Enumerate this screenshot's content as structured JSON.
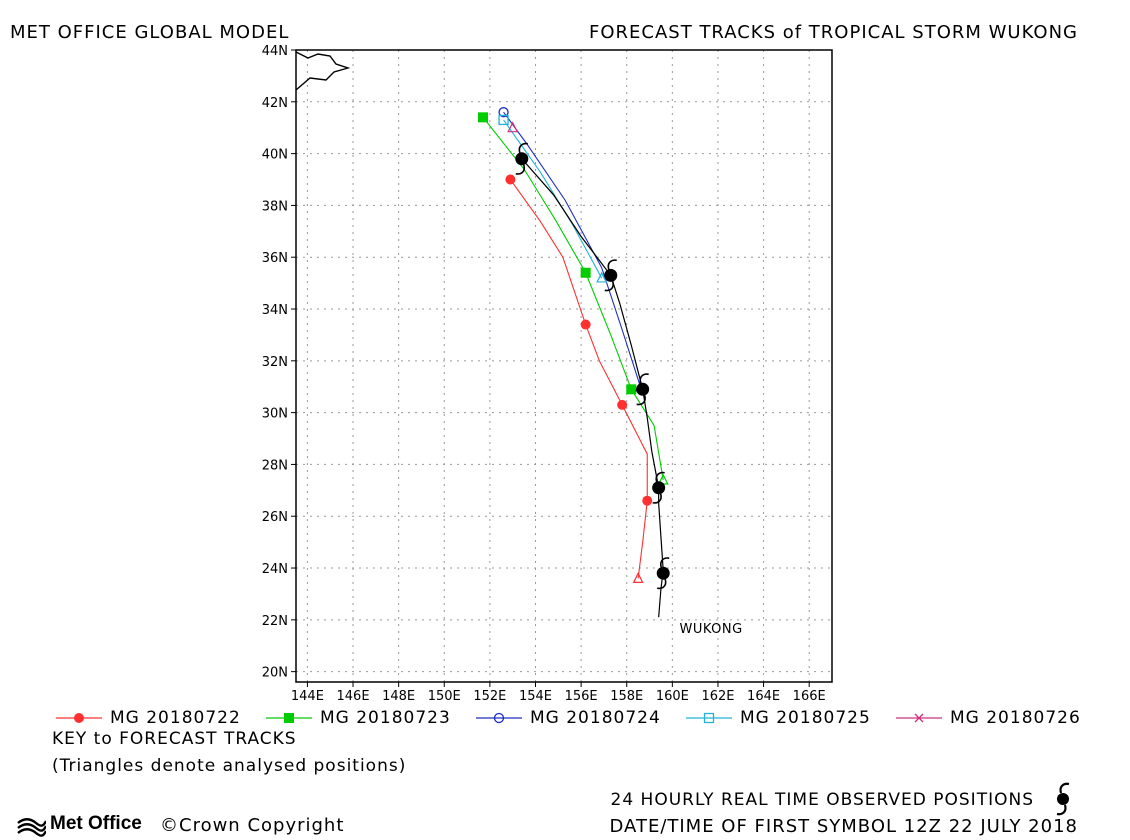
{
  "header": {
    "left": "MET OFFICE GLOBAL MODEL",
    "right": "FORECAST TRACKS of TROPICAL STORM WUKONG"
  },
  "chart_data": {
    "type": "scatter",
    "xlim": [
      143.5,
      167
    ],
    "ylim": [
      19.6,
      44
    ],
    "x_ticks": [
      "144E",
      "146E",
      "148E",
      "150E",
      "152E",
      "154E",
      "156E",
      "158E",
      "160E",
      "162E",
      "164E",
      "166E"
    ],
    "x_tick_values": [
      144,
      146,
      148,
      150,
      152,
      154,
      156,
      158,
      160,
      162,
      164,
      166
    ],
    "y_ticks": [
      "20N",
      "22N",
      "24N",
      "26N",
      "28N",
      "30N",
      "32N",
      "34N",
      "36N",
      "38N",
      "40N",
      "42N",
      "44N"
    ],
    "y_tick_values": [
      20,
      22,
      24,
      26,
      28,
      30,
      32,
      34,
      36,
      38,
      40,
      42,
      44
    ],
    "grid": true,
    "storm_label": "WUKONG",
    "storm_label_pos": [
      161.7,
      21.5
    ],
    "observed_track": {
      "color": "#000000",
      "line": [
        [
          159.4,
          22.1
        ],
        [
          159.5,
          23.2
        ],
        [
          159.6,
          23.9
        ],
        [
          159.5,
          25.2
        ],
        [
          159.4,
          26.5
        ],
        [
          159.4,
          27.1
        ],
        [
          159.1,
          28.5
        ],
        [
          158.9,
          29.8
        ],
        [
          158.7,
          30.9
        ],
        [
          158.2,
          32.6
        ],
        [
          157.7,
          34.2
        ],
        [
          157.3,
          35.3
        ],
        [
          156.0,
          36.8
        ],
        [
          154.8,
          38.4
        ],
        [
          153.4,
          39.8
        ]
      ],
      "symbols": [
        [
          159.6,
          23.8
        ],
        [
          159.4,
          27.1
        ],
        [
          158.7,
          30.9
        ],
        [
          157.3,
          35.3
        ],
        [
          153.4,
          39.8
        ]
      ]
    },
    "series": [
      {
        "name": "MG 20180722",
        "color": "#ff3030",
        "marker": "filled-circle",
        "path": [
          [
            158.5,
            23.6
          ],
          [
            158.7,
            25.0
          ],
          [
            158.9,
            26.6
          ],
          [
            158.9,
            28.4
          ],
          [
            157.8,
            30.3
          ],
          [
            156.8,
            32.0
          ],
          [
            156.2,
            33.4
          ],
          [
            155.2,
            36.0
          ],
          [
            154.2,
            37.4
          ],
          [
            152.9,
            39.0
          ]
        ],
        "markers": [
          [
            158.9,
            26.6
          ],
          [
            157.8,
            30.3
          ],
          [
            156.2,
            33.4
          ],
          [
            152.9,
            39.0
          ]
        ],
        "analysed": [
          158.5,
          23.6
        ]
      },
      {
        "name": "MG 20180723",
        "color": "#00cc00",
        "marker": "filled-square",
        "path": [
          [
            159.6,
            27.4
          ],
          [
            159.2,
            29.5
          ],
          [
            158.2,
            30.9
          ],
          [
            157.3,
            33.0
          ],
          [
            156.2,
            35.4
          ],
          [
            154.9,
            37.4
          ],
          [
            153.5,
            39.4
          ],
          [
            151.7,
            41.4
          ]
        ],
        "markers": [
          [
            158.2,
            30.9
          ],
          [
            156.2,
            35.4
          ],
          [
            151.7,
            41.4
          ]
        ],
        "analysed": [
          159.6,
          27.4
        ]
      },
      {
        "name": "MG 20180724",
        "color": "#1a2fc0",
        "marker": "open-circle",
        "path": [
          [
            158.6,
            31.0
          ],
          [
            157.8,
            33.2
          ],
          [
            156.9,
            35.6
          ],
          [
            155.3,
            38.2
          ],
          [
            153.6,
            40.4
          ],
          [
            152.6,
            41.6
          ]
        ],
        "markers": [
          [
            152.6,
            41.6
          ]
        ],
        "analysed": [
          158.6,
          31.0
        ]
      },
      {
        "name": "MG 20180725",
        "color": "#22b4d8",
        "marker": "open-square",
        "path": [
          [
            156.9,
            35.2
          ],
          [
            155.6,
            37.3
          ],
          [
            154.2,
            39.3
          ],
          [
            152.6,
            41.3
          ]
        ],
        "markers": [
          [
            152.6,
            41.3
          ]
        ],
        "analysed": [
          156.9,
          35.2
        ]
      },
      {
        "name": "MG 20180726",
        "color": "#d0307f",
        "marker": "x",
        "path": [],
        "markers": [],
        "analysed": [
          153.0,
          41.0
        ]
      }
    ]
  },
  "key": {
    "title": "KEY to FORECAST TRACKS",
    "note": "(Triangles denote analysed positions)"
  },
  "footer": {
    "observed": "24 HOURLY REAL TIME OBSERVED POSITIONS",
    "datetime": "DATE/TIME OF FIRST SYMBOL 12Z 22 JULY 2018",
    "logo": "Met Office",
    "copyright": "©Crown Copyright"
  }
}
